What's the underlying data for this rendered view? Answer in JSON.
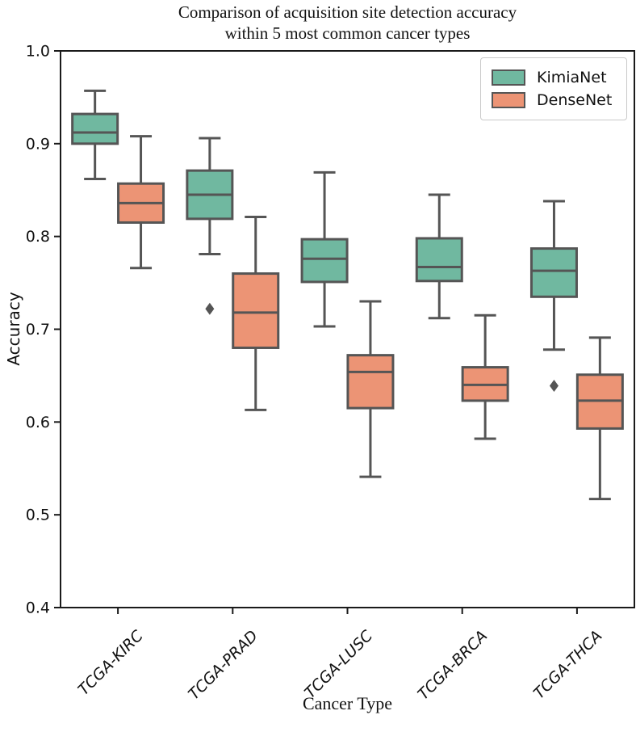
{
  "figure": {
    "title_line1": "Comparison of acquisition site detection accuracy",
    "title_line2": "within 5 most common cancer types",
    "xlabel": "Cancer Type",
    "ylabel": "Accuracy"
  },
  "colors": {
    "kimianet_fill": "#70b8a0",
    "densenet_fill": "#ec9475",
    "box_edge": "#555555",
    "flier": "#555555",
    "spine": "#1a1a1a",
    "legend_border": "#c9c9c9",
    "background": "#ffffff"
  },
  "chart_data": {
    "type": "box",
    "title": "Comparison of acquisition site detection accuracy within 5 most common cancer types",
    "xlabel": "Cancer Type",
    "ylabel": "Accuracy",
    "ylim": [
      0.4,
      1.0
    ],
    "yticks": [
      1.0,
      0.9,
      0.8,
      0.7,
      0.6,
      0.5,
      0.4
    ],
    "grid": false,
    "legend_position": "upper right",
    "categories": [
      "TCGA-KIRC",
      "TCGA-PRAD",
      "TCGA-LUSC",
      "TCGA-BRCA",
      "TCGA-THCA"
    ],
    "series": [
      {
        "name": "KimiaNet",
        "color": "#70b8a0",
        "boxes": [
          {
            "whislo": 0.862,
            "q1": 0.9,
            "med": 0.912,
            "q3": 0.932,
            "whishi": 0.957,
            "fliers": []
          },
          {
            "whislo": 0.781,
            "q1": 0.819,
            "med": 0.845,
            "q3": 0.871,
            "whishi": 0.906,
            "fliers": [
              0.722
            ]
          },
          {
            "whislo": 0.703,
            "q1": 0.751,
            "med": 0.776,
            "q3": 0.797,
            "whishi": 0.869,
            "fliers": []
          },
          {
            "whislo": 0.712,
            "q1": 0.752,
            "med": 0.767,
            "q3": 0.798,
            "whishi": 0.845,
            "fliers": []
          },
          {
            "whislo": 0.678,
            "q1": 0.735,
            "med": 0.763,
            "q3": 0.787,
            "whishi": 0.838,
            "fliers": [
              0.639
            ]
          }
        ]
      },
      {
        "name": "DenseNet",
        "color": "#ec9475",
        "boxes": [
          {
            "whislo": 0.766,
            "q1": 0.815,
            "med": 0.836,
            "q3": 0.857,
            "whishi": 0.908,
            "fliers": []
          },
          {
            "whislo": 0.613,
            "q1": 0.68,
            "med": 0.718,
            "q3": 0.76,
            "whishi": 0.821,
            "fliers": []
          },
          {
            "whislo": 0.541,
            "q1": 0.615,
            "med": 0.654,
            "q3": 0.672,
            "whishi": 0.73,
            "fliers": []
          },
          {
            "whislo": 0.582,
            "q1": 0.623,
            "med": 0.64,
            "q3": 0.659,
            "whishi": 0.715,
            "fliers": []
          },
          {
            "whislo": 0.517,
            "q1": 0.593,
            "med": 0.623,
            "q3": 0.651,
            "whishi": 0.691,
            "fliers": []
          }
        ]
      }
    ]
  }
}
